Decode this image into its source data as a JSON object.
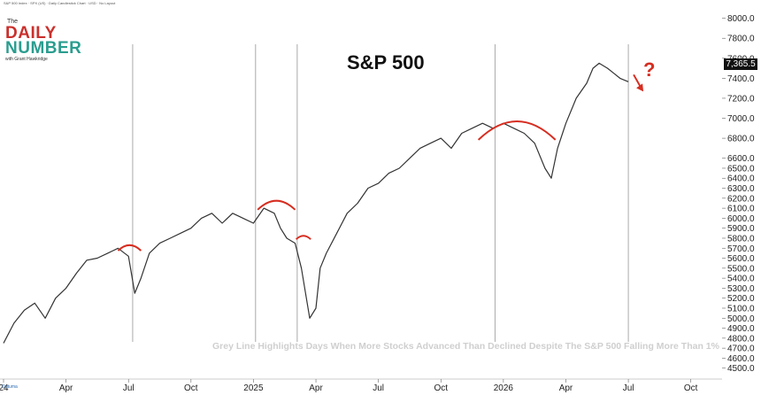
{
  "header": {
    "chart_info": "S&P 500 Index · SPX (US) · Daily Candlestick Chart · USD · No Layout"
  },
  "logo": {
    "the": "The",
    "daily": "DAILY",
    "number": "NUMBER",
    "byline": "with Grant Hawkridge"
  },
  "watermark": "Optuma",
  "chart_data": {
    "type": "line",
    "title": "S&P 500",
    "caption": "Grey Line Highlights Days When More Stocks Advanced Than Declined Despite The S&P 500 Falling More Than 1%",
    "last_value_label": "7,365.5",
    "annotation_question": "?",
    "ylim": [
      4400,
      8050
    ],
    "y_ticks": [
      "8000.0",
      "7800.0",
      "7600.0",
      "7400.0",
      "7200.0",
      "7000.0",
      "6800.0",
      "6600.0",
      "6500.0",
      "6400.0",
      "6300.0",
      "6200.0",
      "6100.0",
      "6000.0",
      "5900.0",
      "5800.0",
      "5700.0",
      "5600.0",
      "5500.0",
      "5400.0",
      "5300.0",
      "5200.0",
      "5100.0",
      "5000.0",
      "4900.0",
      "4800.0",
      "4700.0",
      "4600.0",
      "4500.0"
    ],
    "x_tick_labels": [
      "24",
      "Apr",
      "Jul",
      "Oct",
      "2025",
      "Apr",
      "Jul",
      "Oct",
      "2026",
      "Apr",
      "Jul",
      "Oct"
    ],
    "x_tick_months": [
      0,
      3,
      6,
      9,
      12,
      15,
      18,
      21,
      24,
      27,
      30,
      33
    ],
    "xlim_months": [
      0,
      34.5
    ],
    "series": [
      {
        "x": [
          0,
          0.5,
          1,
          1.5,
          2,
          2.5,
          3,
          3.5,
          4,
          4.5,
          5,
          5.5,
          6,
          6.3,
          6.6,
          7,
          7.5,
          8,
          8.5,
          9,
          9.5,
          10,
          10.5,
          11,
          11.5,
          12,
          12.5,
          13,
          13.3,
          13.6,
          14,
          14.3,
          14.7,
          15,
          15.2,
          15.5,
          16,
          16.5,
          17,
          17.5,
          18,
          18.5,
          19,
          19.5,
          20,
          20.5,
          21,
          21.5,
          22,
          22.5,
          23,
          23.5,
          24,
          24.5,
          25,
          25.5,
          26,
          26.3,
          26.6,
          27,
          27.5,
          28,
          28.3,
          28.6,
          29,
          29.3,
          29.6,
          30
        ],
        "y": [
          4750,
          4950,
          5080,
          5150,
          5000,
          5200,
          5300,
          5450,
          5580,
          5600,
          5650,
          5700,
          5620,
          5250,
          5400,
          5650,
          5750,
          5800,
          5850,
          5900,
          6000,
          6050,
          5950,
          6050,
          6000,
          5950,
          6100,
          6050,
          5900,
          5800,
          5750,
          5500,
          5000,
          5100,
          5500,
          5650,
          5850,
          6050,
          6150,
          6300,
          6350,
          6450,
          6500,
          6600,
          6700,
          6750,
          6800,
          6700,
          6850,
          6900,
          6950,
          6900,
          6950,
          6900,
          6850,
          6750,
          6500,
          6400,
          6700,
          6950,
          7200,
          7350,
          7500,
          7550,
          7500,
          7450,
          7400,
          7365
        ]
      }
    ],
    "event_lines_months": [
      6.2,
      12.1,
      14.1,
      23.6,
      30.0
    ],
    "arc_annotations": [
      {
        "start_month": 5.5,
        "end_month": 6.6,
        "peak": 5740
      },
      {
        "start_month": 12.2,
        "end_month": 14.0,
        "peak": 6190
      },
      {
        "start_month": 14.05,
        "end_month": 14.75,
        "peak": 5830
      },
      {
        "start_month": 22.8,
        "end_month": 26.5,
        "peak": 7000
      }
    ],
    "grid": false,
    "axis_position": "right",
    "colors": {
      "price": "#333333",
      "event_line": "#aaaaaa",
      "arc": "#d62d20",
      "caption": "#cfcfcf"
    }
  }
}
